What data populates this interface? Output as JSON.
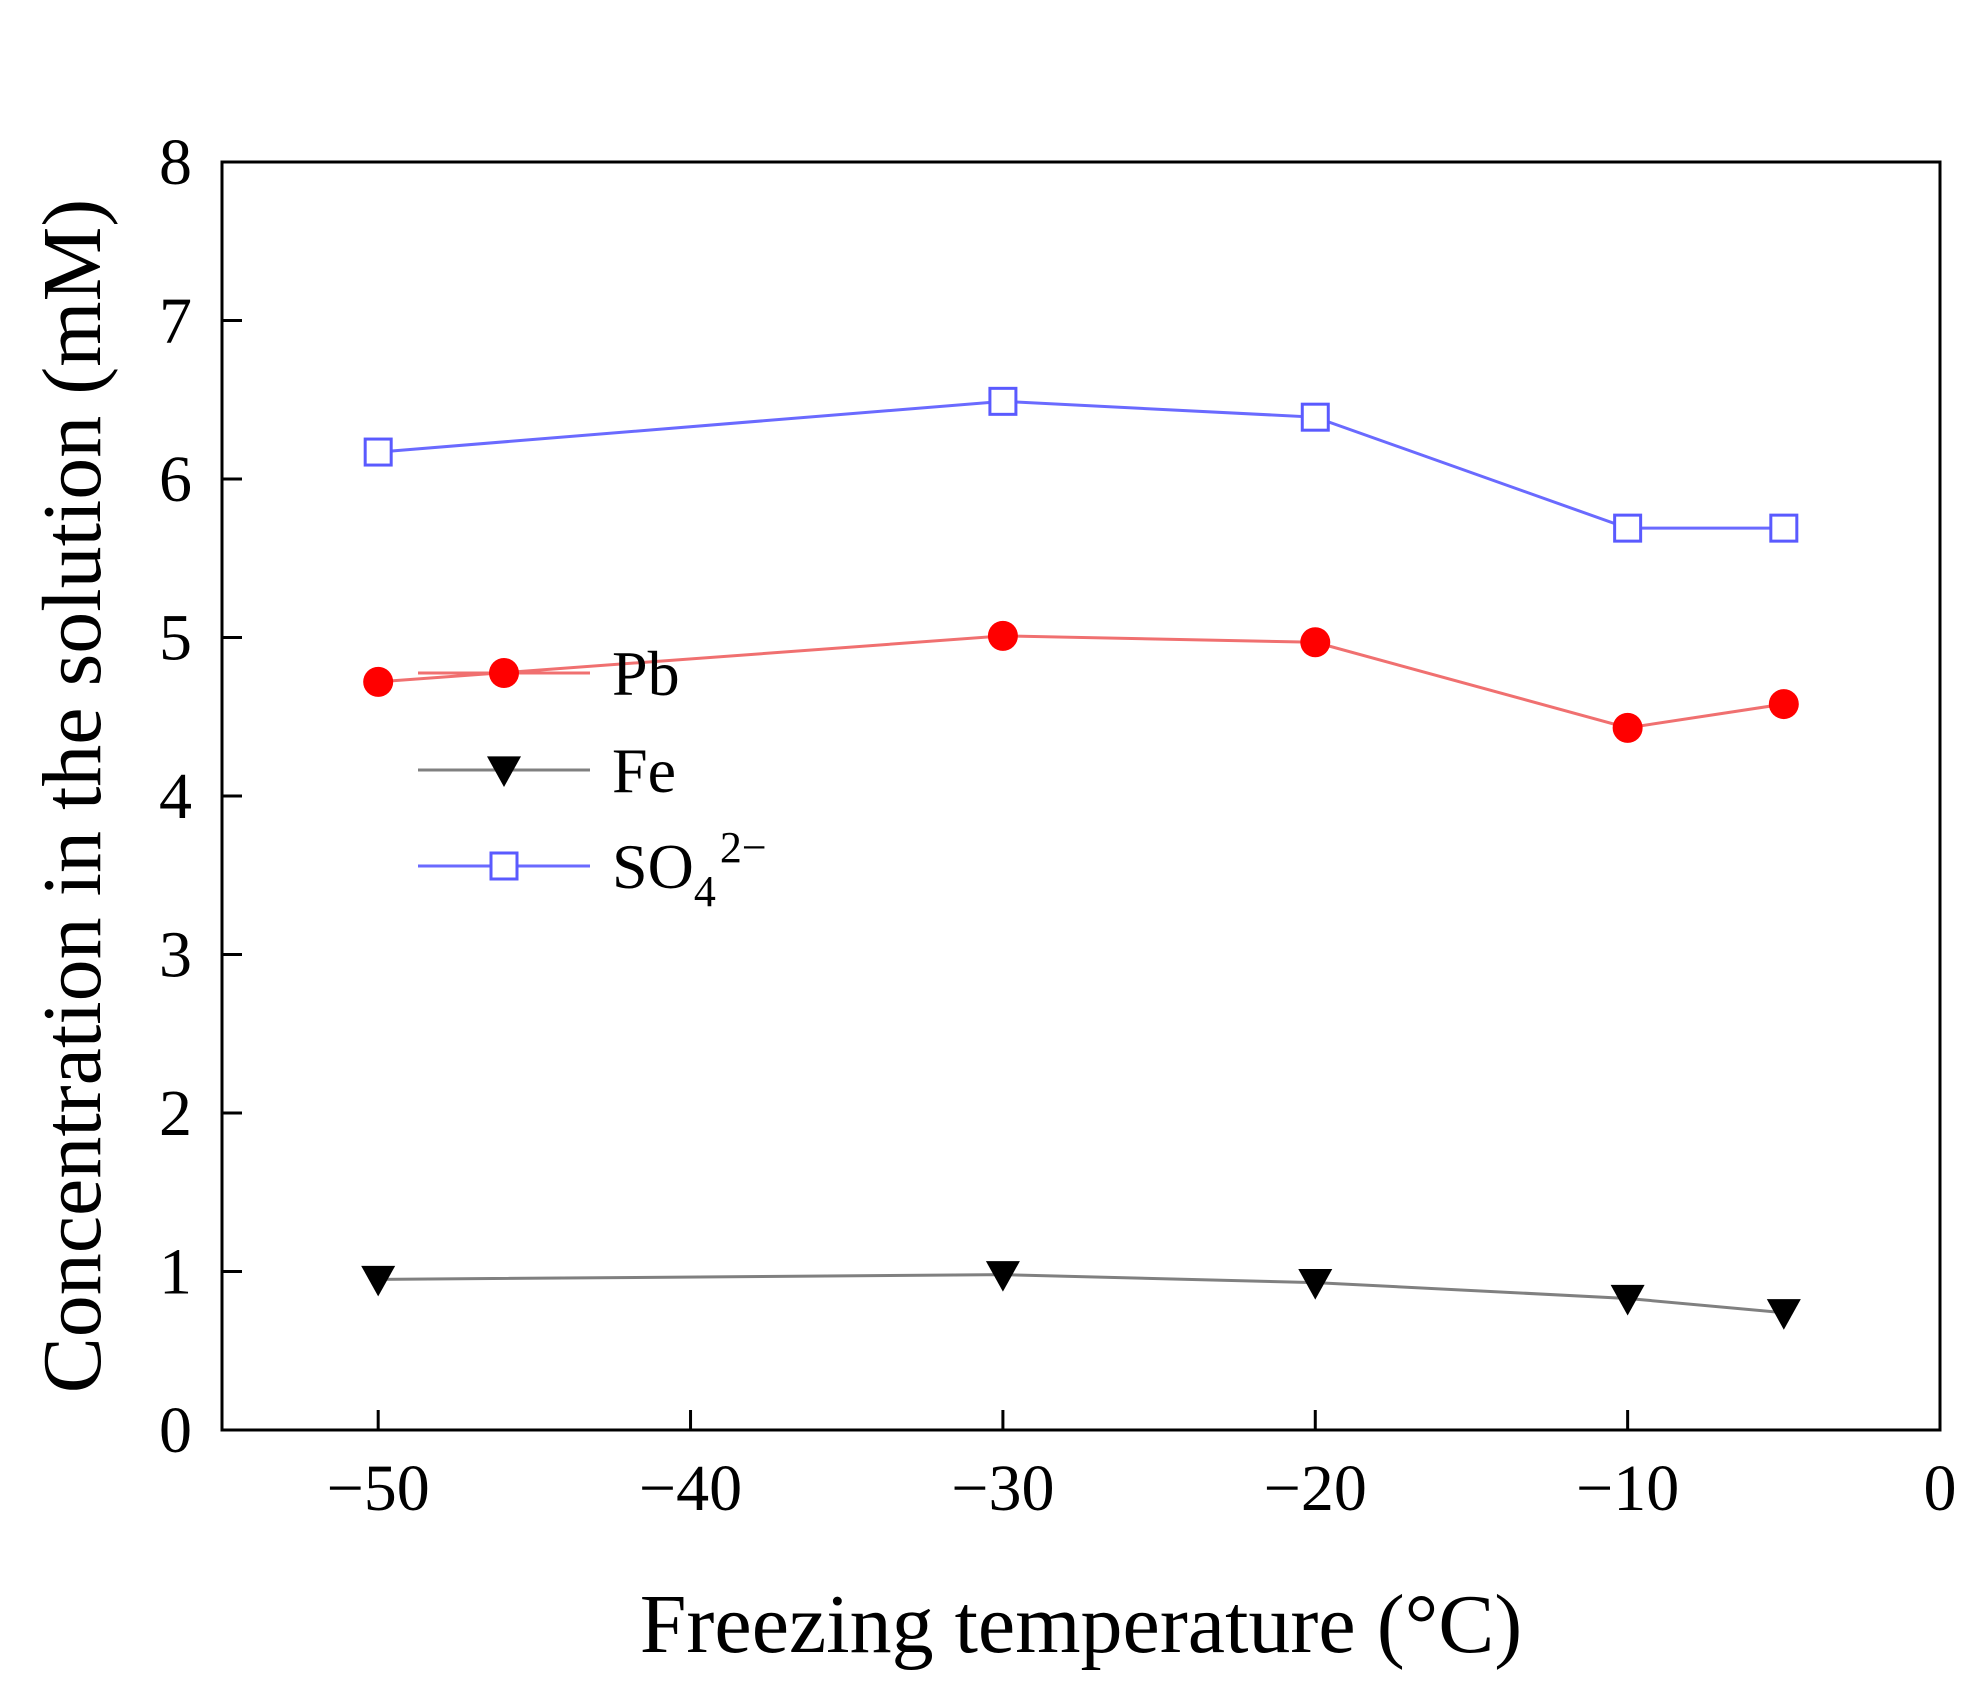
{
  "chart_data": {
    "type": "line",
    "xlabel": "Freezing temperature (°C)",
    "ylabel": "Concentration in the solution (mM)",
    "xlim": [
      -55,
      0
    ],
    "ylim": [
      0,
      8
    ],
    "x_ticks": [
      -50,
      -40,
      -30,
      -20,
      -10,
      0
    ],
    "x_tick_labels": [
      "−50",
      "−40",
      "−30",
      "−20",
      "−10",
      "0"
    ],
    "y_ticks": [
      0,
      1,
      2,
      3,
      4,
      5,
      6,
      7,
      8
    ],
    "y_tick_labels": [
      "0",
      "1",
      "2",
      "3",
      "4",
      "5",
      "6",
      "7",
      "8"
    ],
    "grid": false,
    "legend_position": "middle-left",
    "series": [
      {
        "name": "Pb",
        "marker": "filled-circle",
        "color": "#ff0000",
        "line_color": "#f07070",
        "x": [
          -50,
          -30,
          -20,
          -10,
          -5
        ],
        "values": [
          4.72,
          5.01,
          4.97,
          4.43,
          4.58
        ]
      },
      {
        "name": "Fe",
        "marker": "filled-down-triangle",
        "color": "#000000",
        "line_color": "#808080",
        "x": [
          -50,
          -30,
          -20,
          -10,
          -5
        ],
        "values": [
          0.95,
          0.98,
          0.93,
          0.83,
          0.74
        ]
      },
      {
        "name": "SO4 2-",
        "label_main": "SO",
        "label_sub": "4",
        "label_sup": "2−",
        "marker": "open-square",
        "color": "#5a5aff",
        "line_color": "#6a6aff",
        "x": [
          -50,
          -30,
          -20,
          -10,
          -5
        ],
        "values": [
          6.17,
          6.49,
          6.39,
          5.69,
          5.69
        ]
      }
    ]
  }
}
